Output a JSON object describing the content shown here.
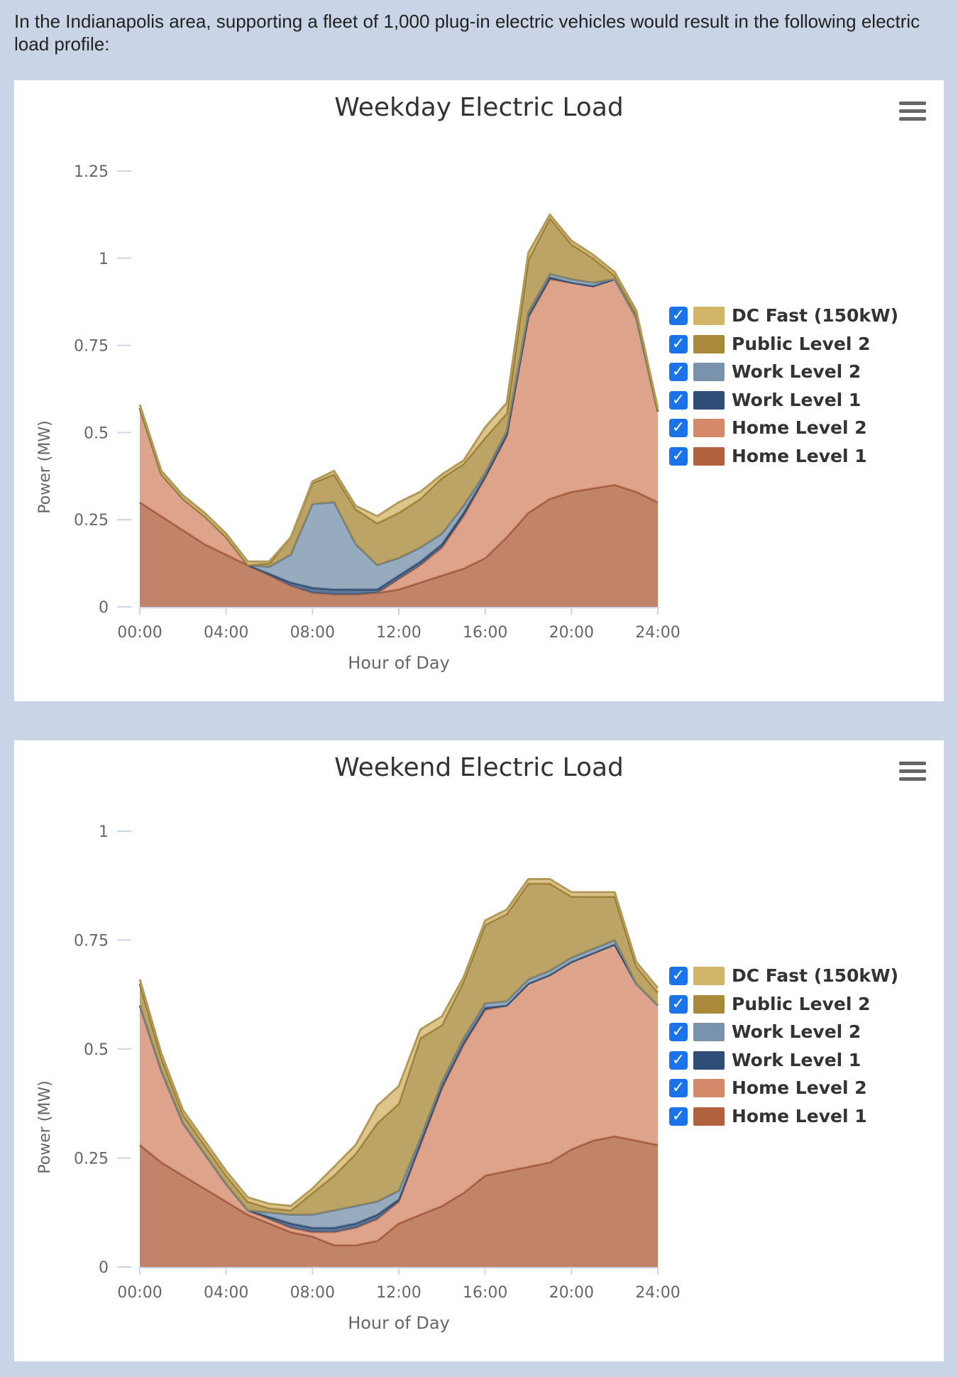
{
  "intro": {
    "text": "In the Indianapolis area, supporting a fleet of 1,000 plug-in electric vehicles would result in the following electric load profile:"
  },
  "colors": {
    "home_level_1": "#b0623f",
    "home_level_2": "#d4896a",
    "work_level_1": "#2e4e78",
    "work_level_2": "#7a93ad",
    "public_level_2": "#a88a3a",
    "dc_fast": "#d3b56a"
  },
  "legend": [
    {
      "label": "DC Fast (150kW)",
      "color": "#d3b56a",
      "checked": true
    },
    {
      "label": "Public Level 2",
      "color": "#a88a3a",
      "checked": true
    },
    {
      "label": "Work Level 2",
      "color": "#7a93ad",
      "checked": true
    },
    {
      "label": "Work Level 1",
      "color": "#2e4e78",
      "checked": true
    },
    {
      "label": "Home Level 2",
      "color": "#d4896a",
      "checked": true
    },
    {
      "label": "Home Level 1",
      "color": "#b0623f",
      "checked": true
    }
  ],
  "chart_data": [
    {
      "type": "area",
      "stacked": true,
      "title": "Weekday Electric Load",
      "xlabel": "Hour of Day",
      "ylabel": "Power (MW)",
      "xlim": [
        0,
        24
      ],
      "ylim": [
        0,
        1.25
      ],
      "x_ticks": [
        "00:00",
        "04:00",
        "08:00",
        "12:00",
        "16:00",
        "20:00",
        "24:00"
      ],
      "y_ticks": [
        "0",
        "0.25",
        "0.5",
        "0.75",
        "1",
        "1.25"
      ],
      "y_tick_values": [
        0,
        0.25,
        0.5,
        0.75,
        1,
        1.25
      ],
      "legend_position": "right",
      "x": [
        0,
        1,
        2,
        3,
        4,
        5,
        6,
        7,
        8,
        9,
        10,
        11,
        12,
        13,
        14,
        15,
        16,
        17,
        18,
        19,
        20,
        21,
        22,
        23,
        24
      ],
      "series": [
        {
          "name": "Home Level 1",
          "values": [
            0.3,
            0.26,
            0.22,
            0.18,
            0.15,
            0.12,
            0.09,
            0.06,
            0.04,
            0.035,
            0.035,
            0.04,
            0.05,
            0.07,
            0.09,
            0.11,
            0.14,
            0.2,
            0.27,
            0.31,
            0.33,
            0.34,
            0.35,
            0.33,
            0.3
          ]
        },
        {
          "name": "Home Level 2",
          "values": [
            0.27,
            0.12,
            0.09,
            0.08,
            0.05,
            0.0,
            0.0,
            0.0,
            0.0,
            0.0,
            0.0,
            0.0,
            0.03,
            0.05,
            0.08,
            0.15,
            0.23,
            0.29,
            0.56,
            0.63,
            0.6,
            0.58,
            0.59,
            0.5,
            0.26
          ]
        },
        {
          "name": "Work Level 1",
          "values": [
            0.0,
            0.0,
            0.0,
            0.0,
            0.0,
            0.0,
            0.005,
            0.01,
            0.015,
            0.015,
            0.015,
            0.01,
            0.01,
            0.01,
            0.01,
            0.01,
            0.005,
            0.005,
            0.005,
            0.005,
            0.0,
            0.0,
            0.0,
            0.0,
            0.0
          ]
        },
        {
          "name": "Work Level 2",
          "values": [
            0.0,
            0.0,
            0.0,
            0.0,
            0.0,
            0.0,
            0.02,
            0.08,
            0.24,
            0.25,
            0.13,
            0.07,
            0.05,
            0.04,
            0.03,
            0.02,
            0.01,
            0.01,
            0.01,
            0.01,
            0.01,
            0.01,
            0.0,
            0.0,
            0.0
          ]
        },
        {
          "name": "Public Level 2",
          "values": [
            0.0,
            0.0,
            0.0,
            0.0,
            0.0,
            0.0,
            0.01,
            0.05,
            0.06,
            0.08,
            0.1,
            0.12,
            0.13,
            0.14,
            0.16,
            0.12,
            0.1,
            0.05,
            0.15,
            0.16,
            0.1,
            0.07,
            0.01,
            0.01,
            0.0
          ]
        },
        {
          "name": "DC Fast (150kW)",
          "values": [
            0.01,
            0.01,
            0.01,
            0.01,
            0.01,
            0.01,
            0.005,
            0.0,
            0.005,
            0.01,
            0.01,
            0.02,
            0.03,
            0.02,
            0.01,
            0.01,
            0.03,
            0.03,
            0.02,
            0.01,
            0.01,
            0.01,
            0.01,
            0.01,
            0.01
          ]
        }
      ]
    },
    {
      "type": "area",
      "stacked": true,
      "title": "Weekend Electric Load",
      "xlabel": "Hour of Day",
      "ylabel": "Power (MW)",
      "xlim": [
        0,
        24
      ],
      "ylim": [
        0,
        1.0
      ],
      "x_ticks": [
        "00:00",
        "04:00",
        "08:00",
        "12:00",
        "16:00",
        "20:00",
        "24:00"
      ],
      "y_ticks": [
        "0",
        "0.25",
        "0.5",
        "0.75",
        "1"
      ],
      "y_tick_values": [
        0,
        0.25,
        0.5,
        0.75,
        1
      ],
      "legend_position": "right",
      "x": [
        0,
        1,
        2,
        3,
        4,
        5,
        6,
        7,
        8,
        9,
        10,
        11,
        12,
        13,
        14,
        15,
        16,
        17,
        18,
        19,
        20,
        21,
        22,
        23,
        24
      ],
      "series": [
        {
          "name": "Home Level 1",
          "values": [
            0.28,
            0.24,
            0.21,
            0.18,
            0.15,
            0.12,
            0.1,
            0.08,
            0.07,
            0.05,
            0.05,
            0.06,
            0.1,
            0.12,
            0.14,
            0.17,
            0.21,
            0.22,
            0.23,
            0.24,
            0.27,
            0.29,
            0.3,
            0.29,
            0.28
          ]
        },
        {
          "name": "Home Level 2",
          "values": [
            0.32,
            0.21,
            0.12,
            0.08,
            0.04,
            0.01,
            0.01,
            0.01,
            0.01,
            0.03,
            0.04,
            0.05,
            0.05,
            0.16,
            0.27,
            0.34,
            0.38,
            0.38,
            0.42,
            0.43,
            0.43,
            0.43,
            0.44,
            0.36,
            0.32
          ]
        },
        {
          "name": "Work Level 1",
          "values": [
            0.0,
            0.0,
            0.0,
            0.0,
            0.0,
            0.0,
            0.005,
            0.01,
            0.01,
            0.01,
            0.01,
            0.01,
            0.005,
            0.005,
            0.005,
            0.005,
            0.005,
            0.0,
            0.0,
            0.0,
            0.0,
            0.0,
            0.0,
            0.0,
            0.0
          ]
        },
        {
          "name": "Work Level 2",
          "values": [
            0.0,
            0.0,
            0.0,
            0.0,
            0.0,
            0.0,
            0.01,
            0.02,
            0.03,
            0.04,
            0.04,
            0.03,
            0.02,
            0.01,
            0.01,
            0.01,
            0.01,
            0.01,
            0.01,
            0.01,
            0.01,
            0.01,
            0.01,
            0.0,
            0.0
          ]
        },
        {
          "name": "Public Level 2",
          "values": [
            0.05,
            0.03,
            0.02,
            0.02,
            0.02,
            0.02,
            0.01,
            0.01,
            0.05,
            0.08,
            0.12,
            0.18,
            0.2,
            0.23,
            0.13,
            0.13,
            0.18,
            0.2,
            0.22,
            0.2,
            0.14,
            0.12,
            0.1,
            0.04,
            0.03
          ]
        },
        {
          "name": "DC Fast (150kW)",
          "values": [
            0.01,
            0.01,
            0.01,
            0.01,
            0.01,
            0.01,
            0.01,
            0.01,
            0.01,
            0.02,
            0.02,
            0.04,
            0.04,
            0.02,
            0.02,
            0.01,
            0.01,
            0.01,
            0.01,
            0.01,
            0.01,
            0.01,
            0.01,
            0.01,
            0.01
          ]
        }
      ]
    }
  ]
}
